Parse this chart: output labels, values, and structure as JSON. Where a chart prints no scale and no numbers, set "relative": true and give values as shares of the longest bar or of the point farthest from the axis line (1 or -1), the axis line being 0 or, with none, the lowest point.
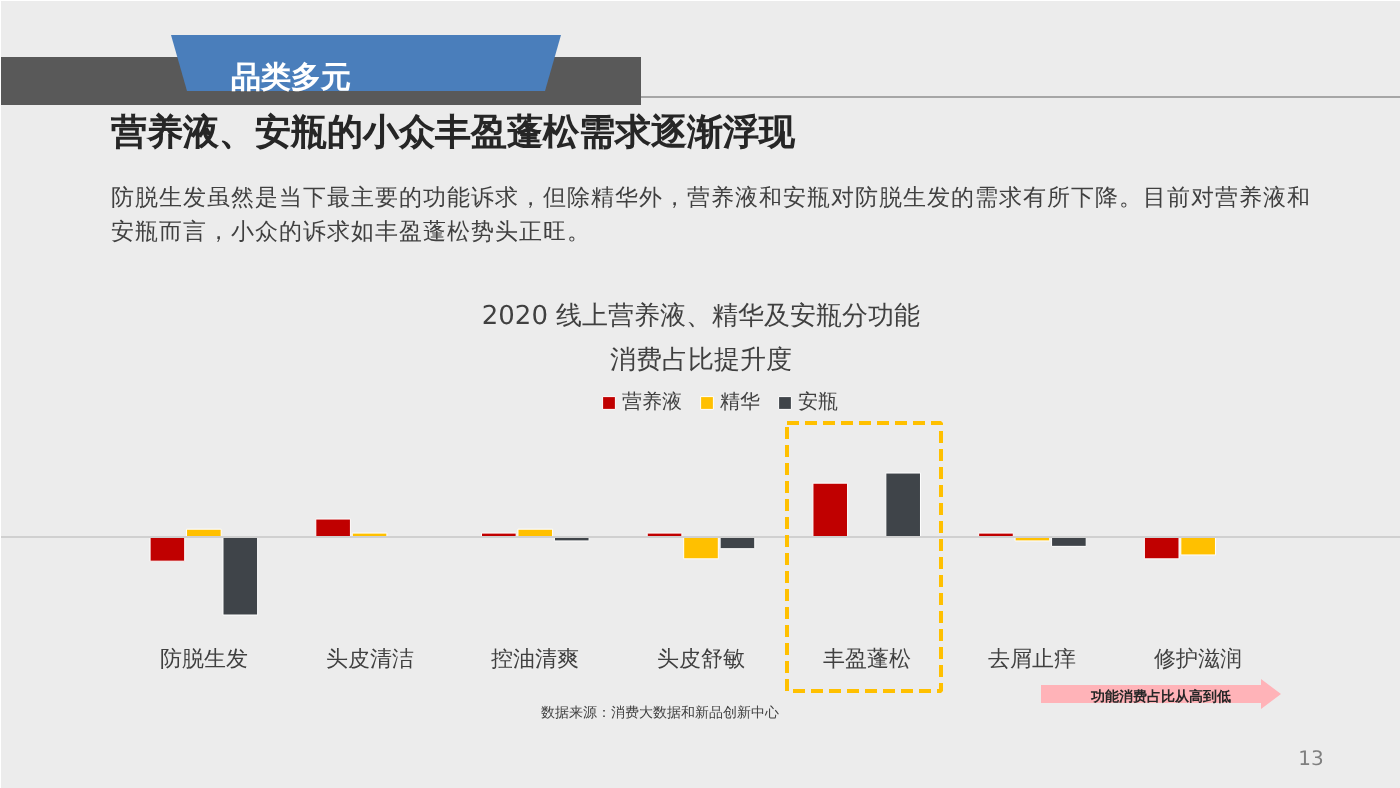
{
  "chart_data": {
    "type": "bar",
    "relative": true,
    "title": "2020 线上营养液、精华及安瓶分功能",
    "subtitle": "消费占比提升度",
    "categories": [
      "防脱生发",
      "头皮清洁",
      "控油清爽",
      "头皮舒敏",
      "丰盈蓬松",
      "去屑止痒",
      "修护滋润"
    ],
    "series": [
      {
        "name": "营养液",
        "color": "#c00000",
        "values": [
          -0.31,
          0.23,
          0.05,
          0.05,
          0.69,
          0.05,
          -0.28
        ]
      },
      {
        "name": "精华",
        "color": "#ffc000",
        "values": [
          0.1,
          0.05,
          0.1,
          -0.28,
          null,
          -0.05,
          -0.23
        ]
      },
      {
        "name": "安瓶",
        "color": "#3f4449",
        "values": [
          -1,
          null,
          -0.05,
          -0.15,
          0.82,
          -0.12,
          null
        ]
      }
    ],
    "legend": "top",
    "grid": false,
    "annotations": [
      "品类多元",
      "营养液、安瓶的小众丰盈蓬松需求逐渐浮现",
      "防脱生发虽然是当下最主要的功能诉求，但除精华外，营养液和安瓶对防脱生发的需求有所下降。目前对营养液和",
      "安瓶而言，小众的诉求如丰盈蓬松势头正旺。",
      "数据来源：消费大数据和新品创新中心",
      "功能消费占比从高到低",
      "13"
    ]
  }
}
